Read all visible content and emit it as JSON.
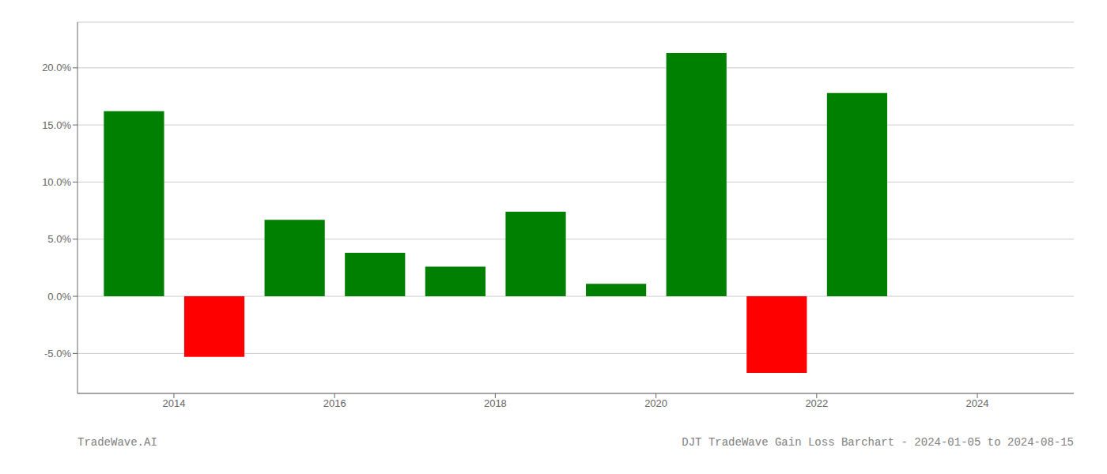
{
  "chart_data": {
    "type": "bar",
    "x": [
      2013.5,
      2014.5,
      2015.5,
      2016.5,
      2017.5,
      2018.5,
      2019.5,
      2020.5,
      2021.5,
      2022.5
    ],
    "values": [
      16.2,
      -5.3,
      6.7,
      3.8,
      2.6,
      7.4,
      1.1,
      21.3,
      -6.7,
      17.8
    ],
    "colors": [
      "#008000",
      "#ff0000",
      "#008000",
      "#008000",
      "#008000",
      "#008000",
      "#008000",
      "#008000",
      "#ff0000",
      "#008000"
    ],
    "xlim": [
      2012.8,
      2025.2
    ],
    "xticks": [
      2014,
      2016,
      2018,
      2020,
      2022,
      2024
    ],
    "ylim": [
      -8.5,
      24.0
    ],
    "yticks": [
      {
        "value": -5.0,
        "label": "-5.0%"
      },
      {
        "value": 0.0,
        "label": "0.0%"
      },
      {
        "value": 5.0,
        "label": "5.0%"
      },
      {
        "value": 10.0,
        "label": "10.0%"
      },
      {
        "value": 15.0,
        "label": "15.0%"
      },
      {
        "value": 20.0,
        "label": "20.0%"
      }
    ],
    "grid": true,
    "annotations": [
      "TradeWave.AI",
      "DJT TradeWave Gain Loss Barchart - 2024-01-05 to 2024-08-15"
    ]
  }
}
